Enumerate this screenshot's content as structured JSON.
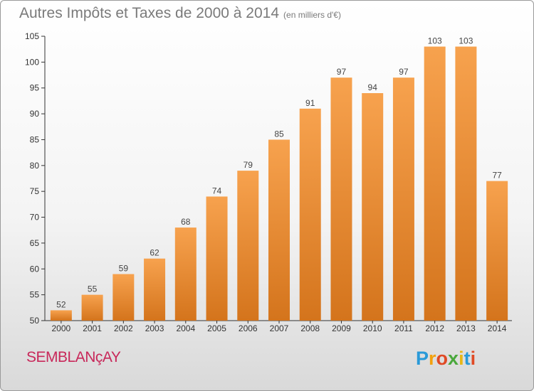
{
  "header": {
    "title": "Autres Impôts et Taxes de 2000 à 2014",
    "unit": "(en milliers d'€)"
  },
  "footer": {
    "commune": "SEMBLANçAY",
    "logo": [
      "P",
      "r",
      "o",
      "x",
      "i",
      "t",
      "i"
    ]
  },
  "colors": {
    "bar_top": "#f7a24e",
    "bar_bottom": "#d4741c",
    "axis": "#333333",
    "grid": "#cccccc"
  },
  "chart_data": {
    "type": "bar",
    "categories": [
      "2000",
      "2001",
      "2002",
      "2003",
      "2004",
      "2005",
      "2006",
      "2007",
      "2008",
      "2009",
      "2010",
      "2011",
      "2012",
      "2013",
      "2014"
    ],
    "values": [
      52,
      55,
      59,
      62,
      68,
      74,
      79,
      85,
      91,
      97,
      94,
      97,
      103,
      103,
      77
    ],
    "yticks": [
      50,
      55,
      60,
      65,
      70,
      75,
      80,
      85,
      90,
      95,
      100,
      105
    ],
    "ylim": [
      50,
      105
    ],
    "xlabel": "",
    "ylabel": "",
    "grid": false,
    "data_labels": true
  }
}
